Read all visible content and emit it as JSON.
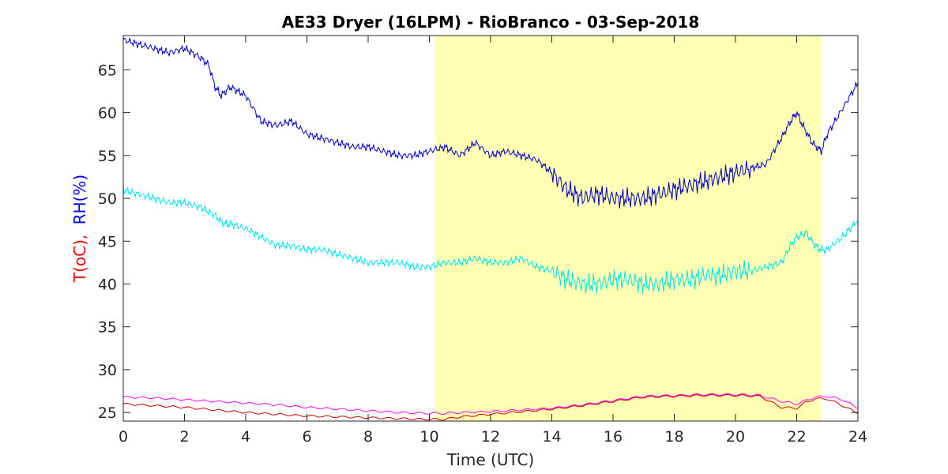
{
  "chart_data": {
    "type": "line",
    "title": "AE33 Dryer (16LPM)  - RioBranco - 03-Sep-2018",
    "xlabel": "Time (UTC)",
    "ylabel_parts": [
      {
        "text": "T(oC),",
        "color": "#ff0000"
      },
      {
        "text": "RH(%)",
        "color": "#0000ff"
      }
    ],
    "xlim": [
      0,
      24
    ],
    "ylim": [
      24,
      69
    ],
    "x_ticks": [
      0,
      2,
      4,
      6,
      8,
      10,
      12,
      14,
      16,
      18,
      20,
      22,
      24
    ],
    "y_ticks": [
      25,
      30,
      35,
      40,
      45,
      50,
      55,
      60,
      65
    ],
    "grid": false,
    "shaded_region": {
      "x_start": 10.2,
      "x_end": 22.8,
      "color": "#ffffb3"
    },
    "series": [
      {
        "color": "#0000cc",
        "x": [
          0,
          0.5,
          1,
          1.5,
          2,
          2.5,
          2.8,
          3.0,
          3.2,
          3.5,
          4.0,
          4.5,
          5.0,
          5.5,
          6.0,
          6.5,
          7.0,
          7.5,
          8.0,
          8.5,
          9.0,
          9.5,
          10.0,
          10.5,
          11.0,
          11.5,
          12.0,
          12.5,
          13.0,
          13.5,
          14.0,
          14.5,
          15.0,
          15.5,
          16.0,
          16.5,
          17.0,
          17.5,
          18.0,
          18.5,
          19.0,
          19.5,
          20.0,
          20.5,
          21.0,
          21.5,
          21.8,
          22.0,
          22.2,
          22.5,
          22.8,
          23.0,
          23.5,
          24.0
        ],
        "values": [
          68.5,
          68,
          67.5,
          67,
          67.5,
          66.5,
          65.5,
          63,
          62,
          63,
          62,
          59,
          58.5,
          59,
          57.5,
          57,
          56.5,
          56,
          56,
          55.5,
          55,
          55,
          55.5,
          56,
          55,
          56.5,
          55,
          55.5,
          55,
          54.5,
          53,
          51,
          50,
          50.5,
          50,
          50,
          50,
          50.5,
          51,
          51.5,
          52,
          52.5,
          53,
          53.5,
          54,
          57,
          59,
          60,
          58.5,
          56.5,
          55.5,
          57.5,
          60.5,
          63.5
        ]
      },
      {
        "color": "#00e5ee",
        "x": [
          0,
          0.5,
          1,
          1.5,
          2,
          2.5,
          3.0,
          3.3,
          3.5,
          4.0,
          4.5,
          5.0,
          5.5,
          6.0,
          6.5,
          7.0,
          7.5,
          8.0,
          8.5,
          9.0,
          9.5,
          10.0,
          10.5,
          11.0,
          11.5,
          12.0,
          12.5,
          13.0,
          13.5,
          14.0,
          14.5,
          15.0,
          15.5,
          16.0,
          16.5,
          17.0,
          17.5,
          18.0,
          18.5,
          19.0,
          19.5,
          20.0,
          20.5,
          21.0,
          21.5,
          21.8,
          22.0,
          22.3,
          22.6,
          22.8,
          23.0,
          23.5,
          24.0
        ],
        "values": [
          51,
          50.5,
          50,
          49.5,
          49.5,
          49,
          48,
          47,
          47,
          46.5,
          45.5,
          44.5,
          44.5,
          44,
          44,
          43.5,
          43,
          42.5,
          42.5,
          42.5,
          42,
          42,
          42.5,
          42.5,
          43,
          42.5,
          42.5,
          43,
          42,
          41.5,
          40.5,
          40,
          40,
          40.5,
          40.5,
          40,
          40,
          40.5,
          40.5,
          41,
          41,
          41.5,
          41.5,
          42,
          42.5,
          44.5,
          45.5,
          46,
          44.5,
          44,
          44,
          45.5,
          47.5
        ]
      },
      {
        "color": "#ff00ff",
        "x": [
          0,
          1,
          2,
          3,
          4,
          5,
          6,
          7,
          8,
          9,
          10,
          10.5,
          11,
          12,
          13,
          14,
          15,
          16,
          17,
          18,
          19,
          20,
          20.8,
          21.5,
          22.0,
          22.3,
          22.6,
          23.0,
          23.5,
          24.0
        ],
        "values": [
          26.8,
          26.7,
          26.5,
          26.3,
          26.1,
          25.9,
          25.6,
          25.4,
          25.2,
          25.0,
          24.9,
          24.9,
          25.0,
          25.1,
          25.3,
          25.5,
          25.9,
          26.4,
          26.9,
          27.0,
          27.1,
          27.1,
          27.0,
          26.3,
          26.0,
          26.4,
          26.8,
          26.9,
          26.5,
          25.5
        ]
      },
      {
        "color": "#cc0000",
        "x": [
          0,
          1,
          2,
          3,
          4,
          5,
          6,
          7,
          8,
          9,
          10,
          10.5,
          11,
          12,
          13,
          14,
          15,
          16,
          17,
          18,
          19,
          20,
          20.8,
          21.5,
          22.0,
          22.3,
          22.6,
          23.0,
          23.5,
          24.0
        ],
        "values": [
          26.0,
          25.8,
          25.6,
          25.3,
          25.0,
          24.8,
          24.6,
          24.5,
          24.4,
          24.3,
          24.2,
          24.2,
          24.5,
          24.8,
          25.1,
          25.4,
          25.8,
          26.3,
          26.8,
          26.9,
          27.0,
          27.0,
          26.9,
          25.6,
          25.5,
          26.2,
          26.6,
          26.6,
          25.8,
          24.9
        ]
      }
    ]
  }
}
